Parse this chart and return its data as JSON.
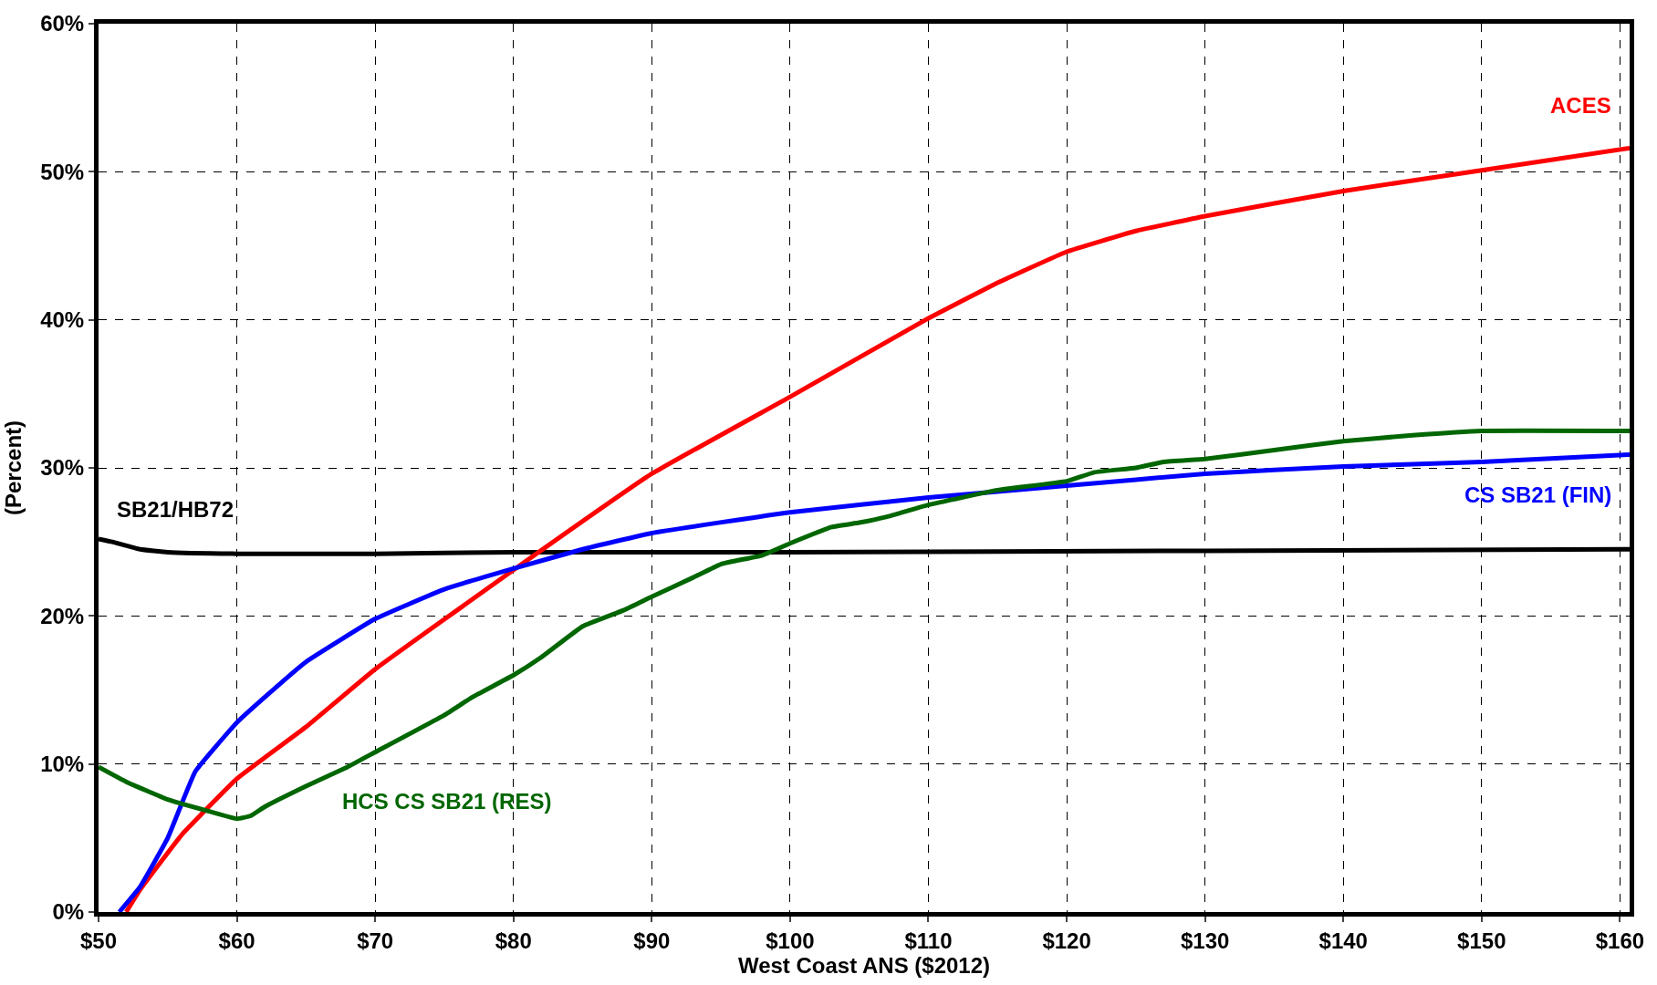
{
  "chart_data": {
    "type": "line",
    "xlabel": "West Coast ANS ($2012)",
    "ylabel": "(Percent)",
    "xlim": [
      50,
      160.7
    ],
    "ylim": [
      0,
      60
    ],
    "xticks": [
      {
        "value": 50,
        "label": "$50"
      },
      {
        "value": 60,
        "label": "$60"
      },
      {
        "value": 70,
        "label": "$70"
      },
      {
        "value": 80,
        "label": "$80"
      },
      {
        "value": 90,
        "label": "$90"
      },
      {
        "value": 100,
        "label": "$100"
      },
      {
        "value": 110,
        "label": "$110"
      },
      {
        "value": 120,
        "label": "$120"
      },
      {
        "value": 130,
        "label": "$130"
      },
      {
        "value": 140,
        "label": "$140"
      },
      {
        "value": 150,
        "label": "$150"
      },
      {
        "value": 160,
        "label": "$160"
      }
    ],
    "yticks": [
      {
        "value": 0,
        "label": "0%"
      },
      {
        "value": 10,
        "label": "10%"
      },
      {
        "value": 20,
        "label": "20%"
      },
      {
        "value": 30,
        "label": "30%"
      },
      {
        "value": 40,
        "label": "40%"
      },
      {
        "value": 50,
        "label": "50%"
      },
      {
        "value": 60,
        "label": "60%"
      }
    ],
    "grid": true,
    "legend": false,
    "marker": "none",
    "line_style": "solid",
    "series": [
      {
        "name": "SB21/HB72",
        "color": "#000000",
        "x": [
          50,
          51,
          53,
          55,
          60,
          70,
          80,
          100,
          130,
          160.7
        ],
        "values": [
          25.2,
          25.0,
          24.5,
          24.3,
          24.2,
          24.2,
          24.3,
          24.3,
          24.4,
          24.5
        ]
      },
      {
        "name": "ACES",
        "color": "#ff0000",
        "x": [
          52,
          53,
          56,
          60,
          65,
          70,
          80,
          90,
          100,
          110,
          115,
          120,
          125,
          130,
          140,
          150,
          160.7
        ],
        "values": [
          0,
          1.5,
          5.2,
          9.0,
          12.5,
          16.4,
          23.1,
          29.6,
          34.8,
          40.1,
          42.5,
          44.6,
          46.0,
          47.0,
          48.7,
          50.1,
          51.6
        ]
      },
      {
        "name": "CS SB21 (FIN)",
        "color": "#0000ff",
        "x": [
          51.5,
          53,
          55,
          57,
          60,
          62,
          65,
          70,
          75,
          80,
          85,
          90,
          100,
          110,
          120,
          130,
          140,
          150,
          160.7
        ],
        "values": [
          0,
          1.7,
          5.0,
          9.5,
          12.8,
          14.5,
          16.9,
          19.8,
          21.8,
          23.2,
          24.5,
          25.6,
          27.0,
          28.0,
          28.8,
          29.6,
          30.1,
          30.4,
          30.9
        ]
      },
      {
        "name": "HCS CS SB21 (RES)",
        "color": "#006600",
        "x": [
          50,
          52,
          55,
          58,
          60,
          61,
          62,
          65,
          68,
          70,
          75,
          77,
          80,
          82,
          85,
          88,
          90,
          93,
          95,
          98,
          100,
          103,
          105,
          107,
          110,
          115,
          120,
          122,
          125,
          127,
          130,
          135,
          140,
          145,
          150,
          160.7
        ],
        "values": [
          9.8,
          8.8,
          7.6,
          6.8,
          6.3,
          6.5,
          7.1,
          8.5,
          9.8,
          10.8,
          13.3,
          14.5,
          16.0,
          17.2,
          19.3,
          20.4,
          21.3,
          22.6,
          23.5,
          24.1,
          24.9,
          26.0,
          26.3,
          26.7,
          27.5,
          28.5,
          29.1,
          29.7,
          30.0,
          30.4,
          30.6,
          31.2,
          31.8,
          32.2,
          32.5,
          32.5
        ]
      }
    ]
  }
}
